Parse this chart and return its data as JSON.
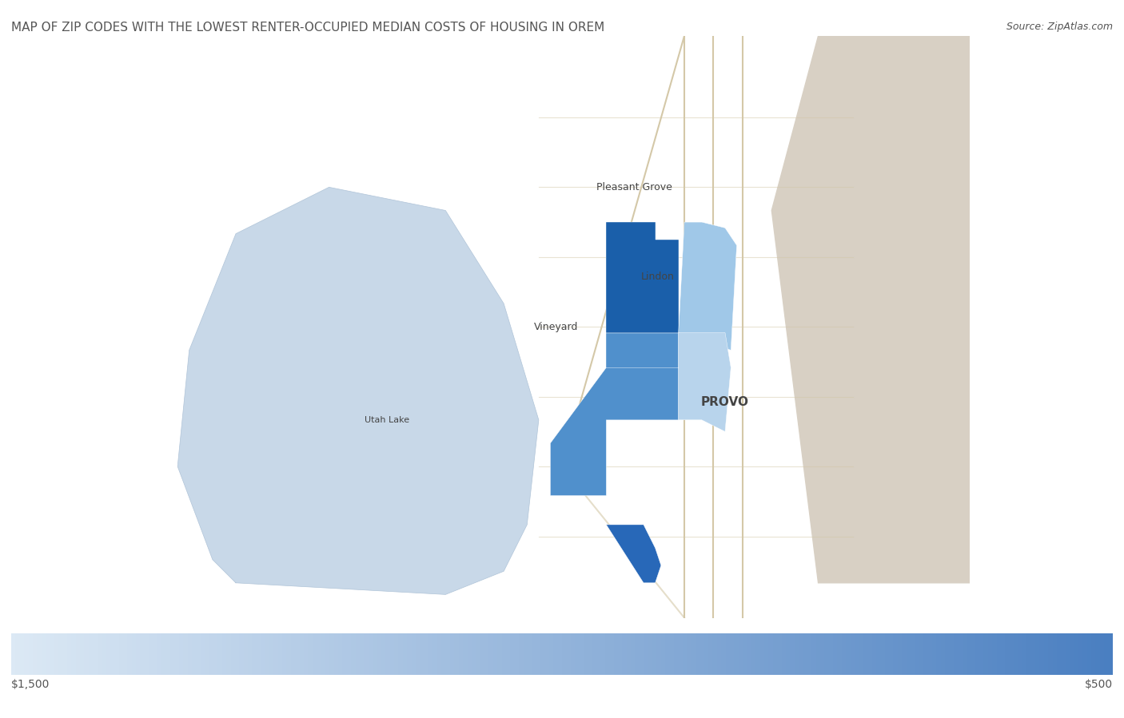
{
  "title": "MAP OF ZIP CODES WITH THE LOWEST RENTER-OCCUPIED MEDIAN COSTS OF HOUSING IN OREM",
  "source_text": "Source: ZipAtlas.com",
  "legend_left_label": "$1,500",
  "legend_right_label": "$500",
  "title_fontsize": 11,
  "source_fontsize": 9,
  "legend_label_fontsize": 10,
  "background_color": "#ffffff",
  "title_color": "#555555",
  "label_color": "#555555",
  "colorbar_left_color": "#dce9f5",
  "colorbar_right_color": "#4a7fc1",
  "map_zoom_lon_range": [
    -112.15,
    -111.45
  ],
  "map_zoom_lat_range": [
    40.05,
    40.55
  ],
  "place_labels": [
    {
      "name": "Pleasant Grove",
      "lon": -111.738,
      "lat": 40.42,
      "fontsize": 9
    },
    {
      "name": "Lindon",
      "lon": -111.718,
      "lat": 40.343,
      "fontsize": 9
    },
    {
      "name": "Vineyard",
      "lon": -111.805,
      "lat": 40.3,
      "fontsize": 9
    },
    {
      "name": "Utah Lake",
      "lon": -111.95,
      "lat": 40.22,
      "fontsize": 8
    },
    {
      "name": "PROVO",
      "lon": -111.66,
      "lat": 40.235,
      "fontsize": 11
    }
  ],
  "lake_lons": [
    -112.08,
    -111.9,
    -111.85,
    -111.83,
    -111.82,
    -111.85,
    -111.9,
    -112.0,
    -112.08,
    -112.12,
    -112.13,
    -112.1,
    -112.08
  ],
  "lake_lats": [
    40.08,
    40.07,
    40.09,
    40.13,
    40.22,
    40.32,
    40.4,
    40.42,
    40.38,
    40.28,
    40.18,
    40.1,
    40.08
  ],
  "land_bg": "#e8e2d8",
  "lake_color": "#c8d8e8",
  "lake_edge_color": "#b0c4d8",
  "road_color": "#d4c8a8",
  "zip_polygons": [
    {
      "lons": [
        -111.762,
        -111.7,
        -111.7,
        -111.72,
        -111.72,
        -111.762
      ],
      "lats": [
        40.295,
        40.295,
        40.375,
        40.375,
        40.39,
        40.39
      ],
      "color": "#1a5faa",
      "zorder": 4
    },
    {
      "lons": [
        -111.762,
        -111.7,
        -111.7,
        -111.72,
        -111.762
      ],
      "lats": [
        40.22,
        40.22,
        40.295,
        40.295,
        40.295
      ],
      "color": "#5090cc",
      "zorder": 4
    },
    {
      "lons": [
        -111.81,
        -111.762,
        -111.762,
        -111.72,
        -111.7,
        -111.7,
        -111.68,
        -111.68,
        -111.7,
        -111.72,
        -111.762,
        -111.81
      ],
      "lats": [
        40.155,
        40.155,
        40.22,
        40.22,
        40.22,
        40.295,
        40.295,
        40.265,
        40.265,
        40.265,
        40.265,
        40.2
      ],
      "color": "#5090cc",
      "zorder": 4
    },
    {
      "lons": [
        -111.762,
        -111.73,
        -111.72,
        -111.715,
        -111.72,
        -111.73,
        -111.762
      ],
      "lats": [
        40.13,
        40.13,
        40.11,
        40.095,
        40.08,
        40.08,
        40.13
      ],
      "color": "#2868b8",
      "zorder": 4
    },
    {
      "lons": [
        -111.7,
        -111.655,
        -111.65,
        -111.66,
        -111.68,
        -111.695,
        -111.7
      ],
      "lats": [
        40.295,
        40.28,
        40.37,
        40.385,
        40.39,
        40.39,
        40.295
      ],
      "color": "#a0c8e8",
      "zorder": 4
    },
    {
      "lons": [
        -111.7,
        -111.68,
        -111.66,
        -111.655,
        -111.66,
        -111.7
      ],
      "lats": [
        40.22,
        40.22,
        40.21,
        40.265,
        40.295,
        40.295
      ],
      "color": "#b8d4ec",
      "zorder": 4
    }
  ]
}
